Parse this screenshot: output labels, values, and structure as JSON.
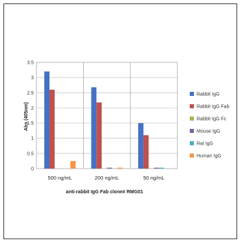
{
  "chart_data": {
    "type": "bar",
    "categories": [
      "500 ng/mL",
      "200 ng/mL",
      "50 ng/mL"
    ],
    "xlabel": "anti-rabbit IgG Fab clone# RMG01",
    "ylabel": "Abs (405nm)",
    "ylim": [
      0,
      3.5
    ],
    "yticks": [
      "0",
      "0.5",
      "1",
      "1.5",
      "2",
      "2.5",
      "3",
      "3.5"
    ],
    "grid": true,
    "legend": "right",
    "series": [
      {
        "name": "Rabbit IgG",
        "color": "#4472c4",
        "values": [
          3.2,
          2.68,
          1.5
        ]
      },
      {
        "name": "Rabbit IgG Fab",
        "color": "#c0504d",
        "values": [
          2.6,
          2.18,
          1.1
        ]
      },
      {
        "name": "Rabbit IgG Fc",
        "color": "#9bbb59",
        "values": [
          0.0,
          0.0,
          0.0
        ]
      },
      {
        "name": "Mouse IgG",
        "color": "#8064a2",
        "values": [
          0.0,
          0.03,
          0.03
        ]
      },
      {
        "name": "Rat IgG",
        "color": "#4bacc6",
        "values": [
          0.0,
          0.0,
          0.03
        ]
      },
      {
        "name": "Human IgG",
        "color": "#f79646",
        "values": [
          0.25,
          0.03,
          0.0
        ]
      }
    ]
  }
}
